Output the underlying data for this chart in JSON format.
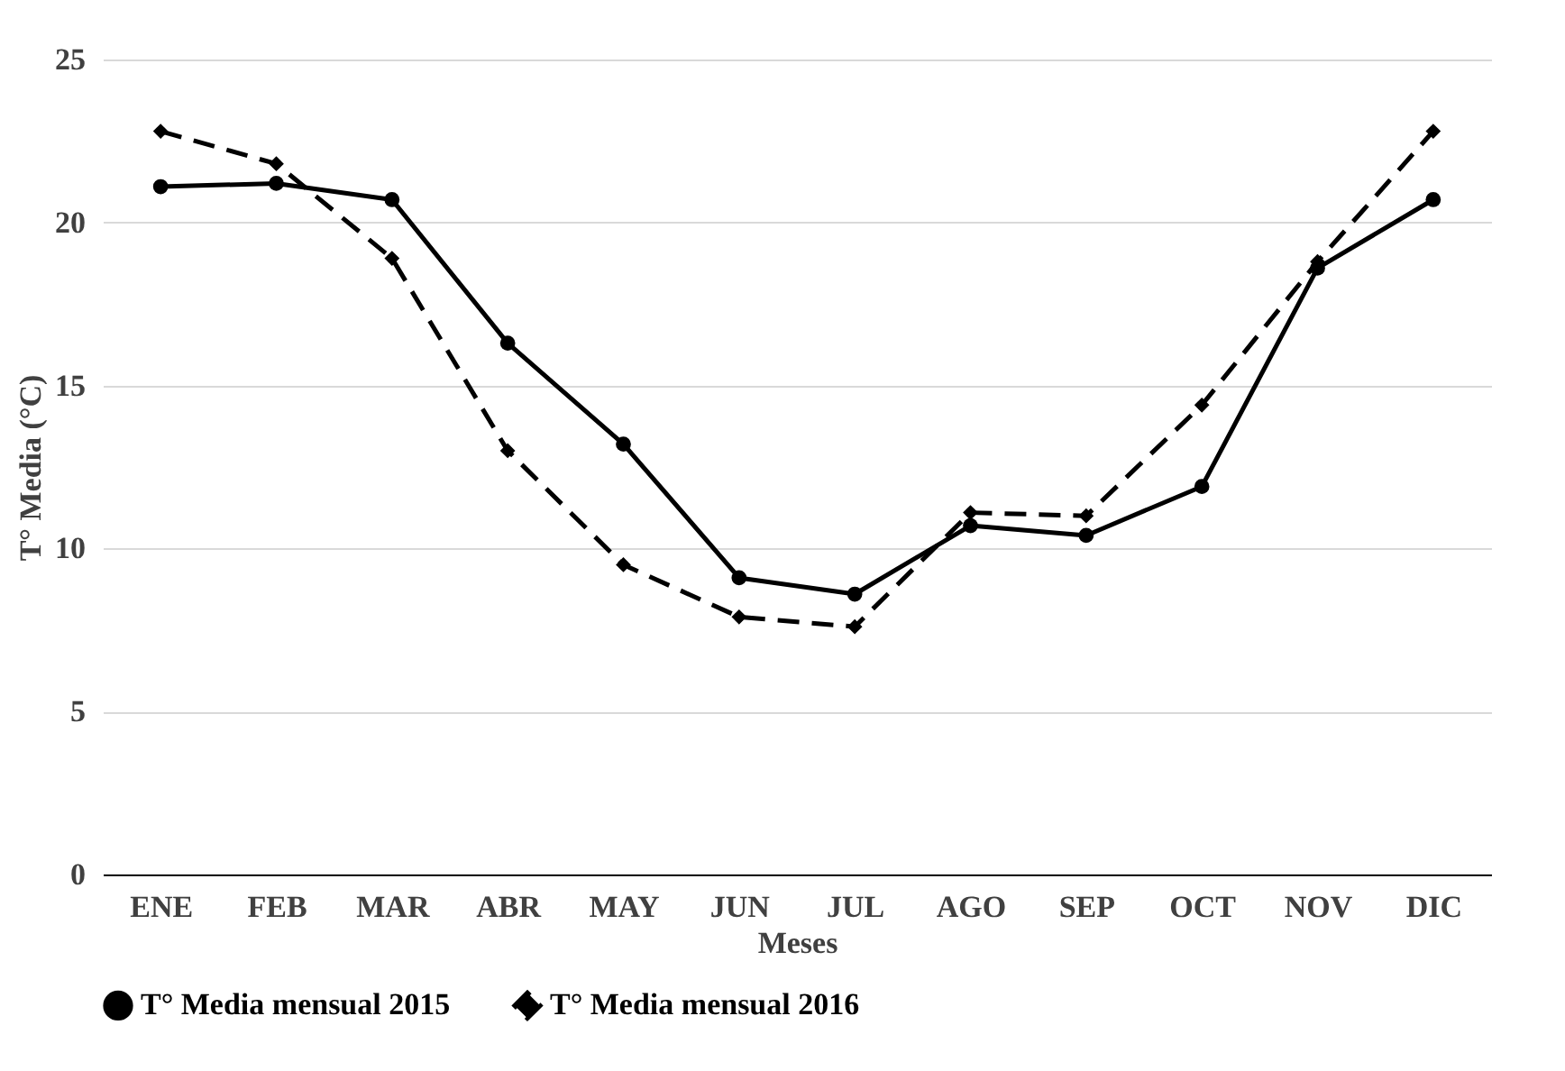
{
  "chart_data": {
    "type": "line",
    "xlabel": "Meses",
    "ylabel": "T° Media (°C)",
    "categories": [
      "ENE",
      "FEB",
      "MAR",
      "ABR",
      "MAY",
      "JUN",
      "JUL",
      "AGO",
      "SEP",
      "OCT",
      "NOV",
      "DIC"
    ],
    "series": [
      {
        "name": "T° Media mensual 2015",
        "color": "#000000",
        "marker": "circle",
        "line_style": "solid",
        "values": [
          21.1,
          21.2,
          20.7,
          16.3,
          13.2,
          9.1,
          8.6,
          10.7,
          10.4,
          11.9,
          18.6,
          20.7
        ]
      },
      {
        "name": "T° Media mensual 2016",
        "color": "#000000",
        "marker": "diamond",
        "line_style": "dashed",
        "values": [
          22.8,
          21.8,
          18.9,
          13.0,
          9.5,
          7.9,
          7.6,
          11.1,
          11.0,
          14.4,
          18.8,
          22.8
        ]
      }
    ],
    "ylim": [
      0,
      25
    ],
    "yticks": [
      0,
      5,
      10,
      15,
      20,
      25
    ],
    "grid": "y",
    "legend": "bottom"
  }
}
